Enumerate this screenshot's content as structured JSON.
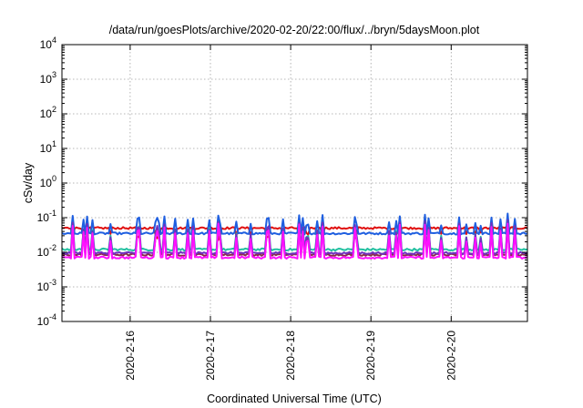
{
  "chart_data": {
    "type": "line",
    "title": "/data/run/goesPlots/archive/2020-02-20/22:00/flux/../bryn/5daysMoon.plot",
    "xlabel": "Coordinated Universal Time (UTC)",
    "ylabel": "cSv/day",
    "yscale": "log",
    "ylim": [
      0.0001,
      10000
    ],
    "yticks": [
      {
        "base": "10",
        "exp": "4"
      },
      {
        "base": "10",
        "exp": "3"
      },
      {
        "base": "10",
        "exp": "2"
      },
      {
        "base": "10",
        "exp": "1"
      },
      {
        "base": "10",
        "exp": "0"
      },
      {
        "base": "10",
        "exp": "-1"
      },
      {
        "base": "10",
        "exp": "-2"
      },
      {
        "base": "10",
        "exp": "-3"
      },
      {
        "base": "10",
        "exp": "-4"
      }
    ],
    "xrange_days": [
      15.15,
      20.95
    ],
    "xticks": [
      {
        "label": "2020-2-16",
        "day": 16
      },
      {
        "label": "2020-2-17",
        "day": 17
      },
      {
        "label": "2020-2-18",
        "day": 18
      },
      {
        "label": "2020-2-19",
        "day": 19
      },
      {
        "label": "2020-2-20",
        "day": 20
      }
    ],
    "grid": true,
    "legend": "none",
    "series": [
      {
        "color": "#e01010",
        "base": 0.05,
        "spike_dir": -1,
        "spike_amp": 0.35
      },
      {
        "color": "#1f5fe0",
        "base": 0.035,
        "spike_dir": 1,
        "spike_amp": 0.55
      },
      {
        "color": "#20c0a0",
        "base": 0.012,
        "spike_dir": 1,
        "spike_amp": 0.8
      },
      {
        "color": "#8a2a4a",
        "base": 0.0085,
        "spike_dir": 1,
        "spike_amp": 0.9
      },
      {
        "color": "#7030c0",
        "base": 0.0095,
        "spike_dir": 1,
        "spike_amp": 0.95
      },
      {
        "color": "#ff10ff",
        "base": 0.007,
        "spike_dir": 1,
        "spike_amp": 1.0
      }
    ]
  }
}
